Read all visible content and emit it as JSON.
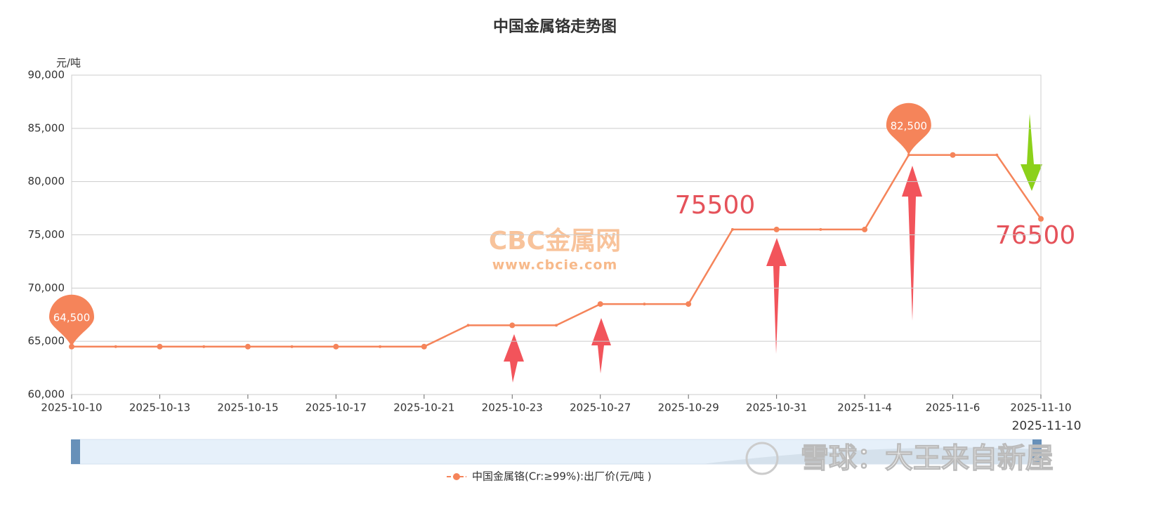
{
  "chart_data": {
    "type": "line",
    "title": "中国金属铬走势图",
    "y_label": "元/吨",
    "categories": [
      "2025-10-10",
      null,
      "2025-10-13",
      null,
      "2025-10-15",
      null,
      "2025-10-17",
      null,
      "2025-10-21",
      null,
      "2025-10-23",
      null,
      "2025-10-27",
      null,
      "2025-10-29",
      null,
      "2025-10-31",
      null,
      "2025-11-4",
      null,
      "2025-11-6",
      null,
      "2025-11-10"
    ],
    "series": [
      {
        "name": "中国金属铬(Cr:≥99%):出厂价(元/吨 )",
        "color": "#f5845a",
        "values": [
          64500,
          64500,
          64500,
          64500,
          64500,
          64500,
          64500,
          64500,
          64500,
          66500,
          66500,
          66500,
          68500,
          68500,
          68500,
          75500,
          75500,
          75500,
          75500,
          82500,
          82500,
          82500,
          76500
        ],
        "value_labels": [
          "64,500",
          null,
          null,
          null,
          null,
          null,
          null,
          null,
          null,
          null,
          null,
          null,
          null,
          null,
          null,
          null,
          null,
          null,
          null,
          "82,500",
          null,
          null,
          null
        ]
      }
    ],
    "ylim": [
      60000,
      90000
    ],
    "yticks": [
      {
        "value": 60000,
        "label": "60,000"
      },
      {
        "value": 65000,
        "label": "65,000"
      },
      {
        "value": 70000,
        "label": "70,000"
      },
      {
        "value": 75000,
        "label": "75,000"
      },
      {
        "value": 80000,
        "label": "80,000"
      },
      {
        "value": 85000,
        "label": "85,000"
      },
      {
        "value": 90000,
        "label": "90,000"
      }
    ],
    "grid": true,
    "annotations": [
      "75500",
      "76500"
    ],
    "zoom_label": "2025-11-10",
    "watermarks": [
      "CBC金属网",
      "www.cbcie.com",
      "雪球：大王来自新屋"
    ]
  }
}
